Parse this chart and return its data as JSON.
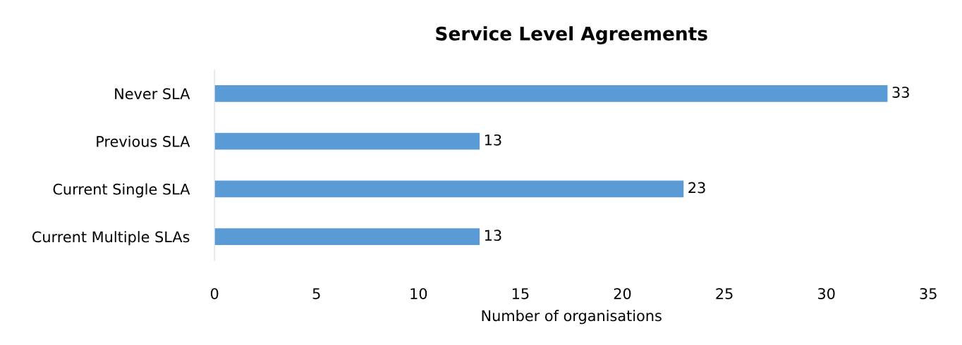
{
  "chart_data": {
    "type": "bar",
    "orientation": "horizontal",
    "title": "Service Level Agreements",
    "xlabel": "Number of organisations",
    "categories": [
      "Never SLA",
      "Previous SLA",
      "Current Single SLA",
      "Current Multiple SLAs"
    ],
    "values": [
      33,
      13,
      23,
      13
    ],
    "color": "#5b9bd5",
    "xlim": [
      0,
      35
    ],
    "xticks": [
      0,
      5,
      10,
      15,
      20,
      25,
      30,
      35
    ],
    "grid": false,
    "data_labels": true
  }
}
